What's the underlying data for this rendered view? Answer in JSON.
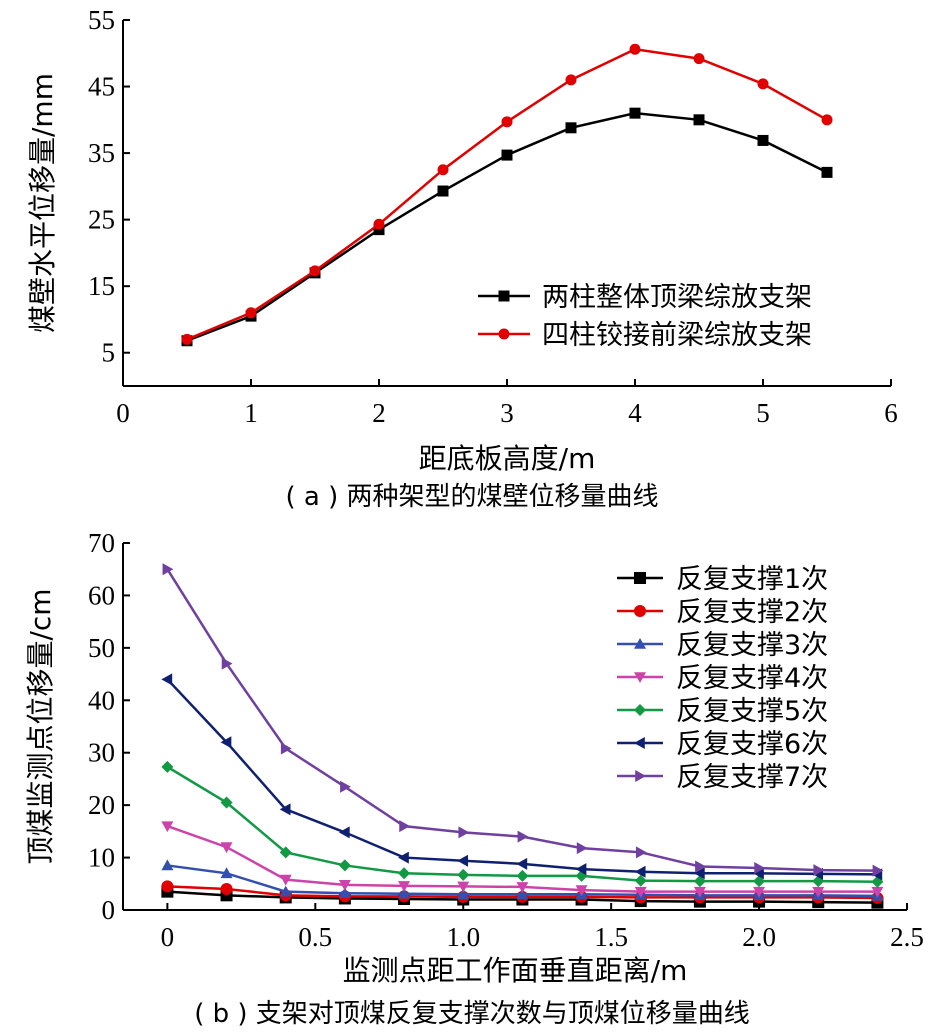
{
  "chart_data": [
    {
      "type": "line",
      "caption": "( a ) 两种架型的煤壁位移量曲线",
      "xlabel": "距底板高度/m",
      "ylabel": "煤壁水平位移量/mm",
      "xlim": [
        0,
        6
      ],
      "ylim": [
        0,
        55
      ],
      "xticks": [
        "0",
        "1",
        "2",
        "3",
        "4",
        "5",
        "6"
      ],
      "yticks": [
        "5",
        "15",
        "25",
        "35",
        "45",
        "55"
      ],
      "grid": false,
      "legend_position": "bottom-right",
      "x": [
        0.5,
        1.0,
        1.5,
        2.0,
        2.5,
        3.0,
        3.5,
        4.0,
        4.5,
        5.0,
        5.5
      ],
      "series": [
        {
          "name": "两柱整体顶梁综放支架",
          "color": "#000000",
          "marker": "square",
          "values": [
            6.8,
            10.5,
            17.0,
            23.5,
            29.3,
            34.7,
            38.8,
            41.0,
            40.0,
            36.9,
            32.1
          ]
        },
        {
          "name": "四柱铰接前梁综放支架",
          "color": "#e00000",
          "marker": "circle",
          "values": [
            7.0,
            11.0,
            17.3,
            24.3,
            32.5,
            39.7,
            46.0,
            50.6,
            49.2,
            45.4,
            40.0
          ]
        }
      ]
    },
    {
      "type": "line",
      "caption": "( b ) 支架对顶煤反复支撑次数与顶煤位移量曲线",
      "xlabel": "监测点距工作面垂直距离/m",
      "ylabel": "顶煤监测点位移量/cm",
      "xlim": [
        -0.15,
        2.5
      ],
      "ylim": [
        0,
        70
      ],
      "xticks": [
        "0",
        "0.5",
        "1.0",
        "1.5",
        "2.0",
        "2.5"
      ],
      "yticks": [
        "0",
        "10",
        "20",
        "30",
        "40",
        "50",
        "60",
        "70"
      ],
      "grid": false,
      "legend_position": "top-right",
      "x": [
        0,
        0.2,
        0.4,
        0.6,
        0.8,
        1.0,
        1.2,
        1.4,
        1.6,
        1.8,
        2.0,
        2.2,
        2.4
      ],
      "series": [
        {
          "name": "反复支撑1次",
          "color": "#000000",
          "marker": "square",
          "values": [
            3.5,
            2.8,
            2.4,
            2.2,
            2.1,
            2.0,
            2.0,
            2.0,
            1.7,
            1.6,
            1.6,
            1.5,
            1.4
          ]
        },
        {
          "name": "反复支撑2次",
          "color": "#e00000",
          "marker": "circle",
          "values": [
            4.5,
            4.0,
            2.8,
            2.6,
            2.6,
            2.5,
            2.5,
            2.5,
            2.4,
            2.4,
            2.4,
            2.4,
            2.3
          ]
        },
        {
          "name": "反复支撑3次",
          "color": "#3350b0",
          "marker": "triangle-up",
          "values": [
            8.5,
            7.0,
            3.5,
            3.2,
            3.1,
            3.0,
            3.0,
            3.0,
            2.9,
            2.8,
            2.8,
            2.8,
            2.7
          ]
        },
        {
          "name": "反复支撑4次",
          "color": "#cc44aa",
          "marker": "triangle-down",
          "values": [
            16.0,
            12.0,
            5.8,
            4.8,
            4.6,
            4.5,
            4.4,
            3.8,
            3.5,
            3.5,
            3.5,
            3.5,
            3.5
          ]
        },
        {
          "name": "反复支撑5次",
          "color": "#119944",
          "marker": "diamond",
          "values": [
            27.3,
            20.5,
            11.0,
            8.5,
            7.0,
            6.7,
            6.5,
            6.5,
            5.6,
            5.5,
            5.5,
            5.5,
            5.4
          ]
        },
        {
          "name": "反复支撑6次",
          "color": "#102070",
          "marker": "triangle-left",
          "values": [
            44.0,
            32.0,
            19.2,
            14.8,
            10.0,
            9.4,
            8.8,
            7.8,
            7.3,
            7.0,
            7.0,
            6.9,
            6.8
          ]
        },
        {
          "name": "反复支撑7次",
          "color": "#7040a0",
          "marker": "triangle-right",
          "values": [
            65.0,
            47.0,
            30.8,
            23.5,
            16.0,
            14.8,
            14.0,
            11.8,
            11.0,
            8.3,
            8.0,
            7.6,
            7.5
          ]
        }
      ]
    }
  ]
}
